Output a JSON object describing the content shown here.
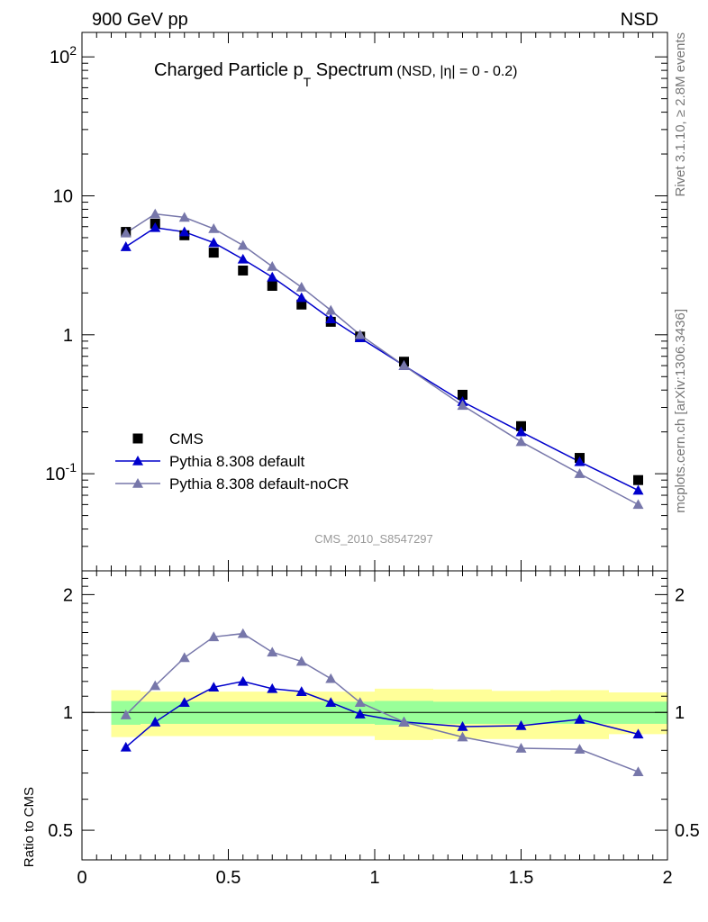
{
  "header": {
    "left": "900 GeV pp",
    "right": "NSD"
  },
  "title": {
    "main": "Charged Particle p",
    "sub": "T",
    "main2": " Spectrum",
    "cut": "(NSD, |η| =   0 - 0.2)"
  },
  "side_labels": {
    "rivet": "Rivet 3.1.10, ≥ 2.8M events",
    "mcplots": "mcplots.cern.ch [arXiv:1306.3436]"
  },
  "analysis_id": "CMS_2010_S8547297",
  "chart_data": [
    {
      "type": "scatter",
      "panel": "main",
      "xlim": [
        0,
        2
      ],
      "ylim": [
        0.02,
        150
      ],
      "yscale": "log",
      "ytick_labels": [
        "10^-1",
        "1",
        "10",
        "10^2"
      ],
      "legend_placement": "lower-left",
      "legend": [
        "CMS",
        "Pythia 8.308 default",
        "Pythia 8.308 default-noCR"
      ],
      "series": [
        {
          "name": "CMS",
          "style": "square",
          "color": "#000000",
          "x": [
            0.15,
            0.25,
            0.35,
            0.45,
            0.55,
            0.65,
            0.75,
            0.85,
            0.95,
            1.1,
            1.3,
            1.5,
            1.7,
            1.9
          ],
          "values": [
            5.5,
            6.3,
            5.2,
            3.9,
            2.9,
            2.25,
            1.65,
            1.24,
            0.97,
            0.64,
            0.37,
            0.22,
            0.13,
            0.09
          ]
        },
        {
          "name": "Pythia 8.308 default",
          "style": "triangle-line",
          "color": "#0000cc",
          "x": [
            0.15,
            0.25,
            0.35,
            0.45,
            0.55,
            0.65,
            0.75,
            0.85,
            0.95,
            1.1,
            1.3,
            1.5,
            1.7,
            1.9
          ],
          "values": [
            4.3,
            5.9,
            5.5,
            4.6,
            3.5,
            2.6,
            1.85,
            1.3,
            0.95,
            0.6,
            0.33,
            0.2,
            0.122,
            0.076
          ]
        },
        {
          "name": "Pythia 8.308 default-noCR",
          "style": "triangle-line",
          "color": "#7777aa",
          "x": [
            0.15,
            0.25,
            0.35,
            0.45,
            0.55,
            0.65,
            0.75,
            0.85,
            0.95,
            1.1,
            1.3,
            1.5,
            1.7,
            1.9
          ],
          "values": [
            5.4,
            7.4,
            7.0,
            5.8,
            4.4,
            3.1,
            2.2,
            1.5,
            1.0,
            0.6,
            0.31,
            0.17,
            0.1,
            0.06
          ]
        }
      ]
    },
    {
      "type": "line",
      "panel": "ratio",
      "ylabel": "Ratio to CMS",
      "xlim": [
        0,
        2
      ],
      "ylim": [
        0.42,
        2.3
      ],
      "yscale": "log",
      "ytick_labels": [
        "0.5",
        "1",
        "2"
      ],
      "xtick_labels": [
        "0",
        "0.5",
        "1",
        "1.5",
        "2"
      ],
      "bands": {
        "bin_edges": [
          0.1,
          0.2,
          0.3,
          0.4,
          0.5,
          0.6,
          0.7,
          0.8,
          0.9,
          1.0,
          1.2,
          1.4,
          1.6,
          1.8,
          2.0
        ],
        "outer_color": "#ffff99",
        "inner_color": "#99ff99",
        "outer_lo": [
          0.865,
          0.87,
          0.87,
          0.87,
          0.87,
          0.87,
          0.87,
          0.87,
          0.87,
          0.85,
          0.855,
          0.855,
          0.855,
          0.88,
          0.82
        ],
        "outer_hi": [
          1.14,
          1.13,
          1.13,
          1.13,
          1.13,
          1.13,
          1.13,
          1.13,
          1.13,
          1.15,
          1.145,
          1.135,
          1.14,
          1.125,
          1.18
        ],
        "inner_lo": [
          0.93,
          0.935,
          0.935,
          0.935,
          0.935,
          0.935,
          0.935,
          0.935,
          0.935,
          0.93,
          0.935,
          0.935,
          0.935,
          0.935,
          0.91
        ],
        "inner_hi": [
          1.07,
          1.065,
          1.065,
          1.065,
          1.065,
          1.065,
          1.065,
          1.065,
          1.065,
          1.07,
          1.065,
          1.065,
          1.065,
          1.065,
          1.1
        ]
      },
      "series": [
        {
          "name": "Pythia 8.308 default",
          "color": "#0000cc",
          "x": [
            0.15,
            0.25,
            0.35,
            0.45,
            0.55,
            0.65,
            0.75,
            0.85,
            0.95,
            1.1,
            1.3,
            1.5,
            1.7,
            1.9
          ],
          "values": [
            0.815,
            0.945,
            1.06,
            1.16,
            1.2,
            1.15,
            1.13,
            1.06,
            0.99,
            0.945,
            0.92,
            0.925,
            0.96,
            0.88
          ]
        },
        {
          "name": "Pythia 8.308 default-noCR",
          "color": "#7777aa",
          "x": [
            0.15,
            0.25,
            0.35,
            0.45,
            0.55,
            0.65,
            0.75,
            0.85,
            0.95,
            1.1,
            1.3,
            1.5,
            1.7,
            1.9
          ],
          "values": [
            0.985,
            1.17,
            1.38,
            1.56,
            1.59,
            1.425,
            1.35,
            1.22,
            1.06,
            0.945,
            0.865,
            0.81,
            0.805,
            0.705
          ]
        }
      ]
    }
  ]
}
